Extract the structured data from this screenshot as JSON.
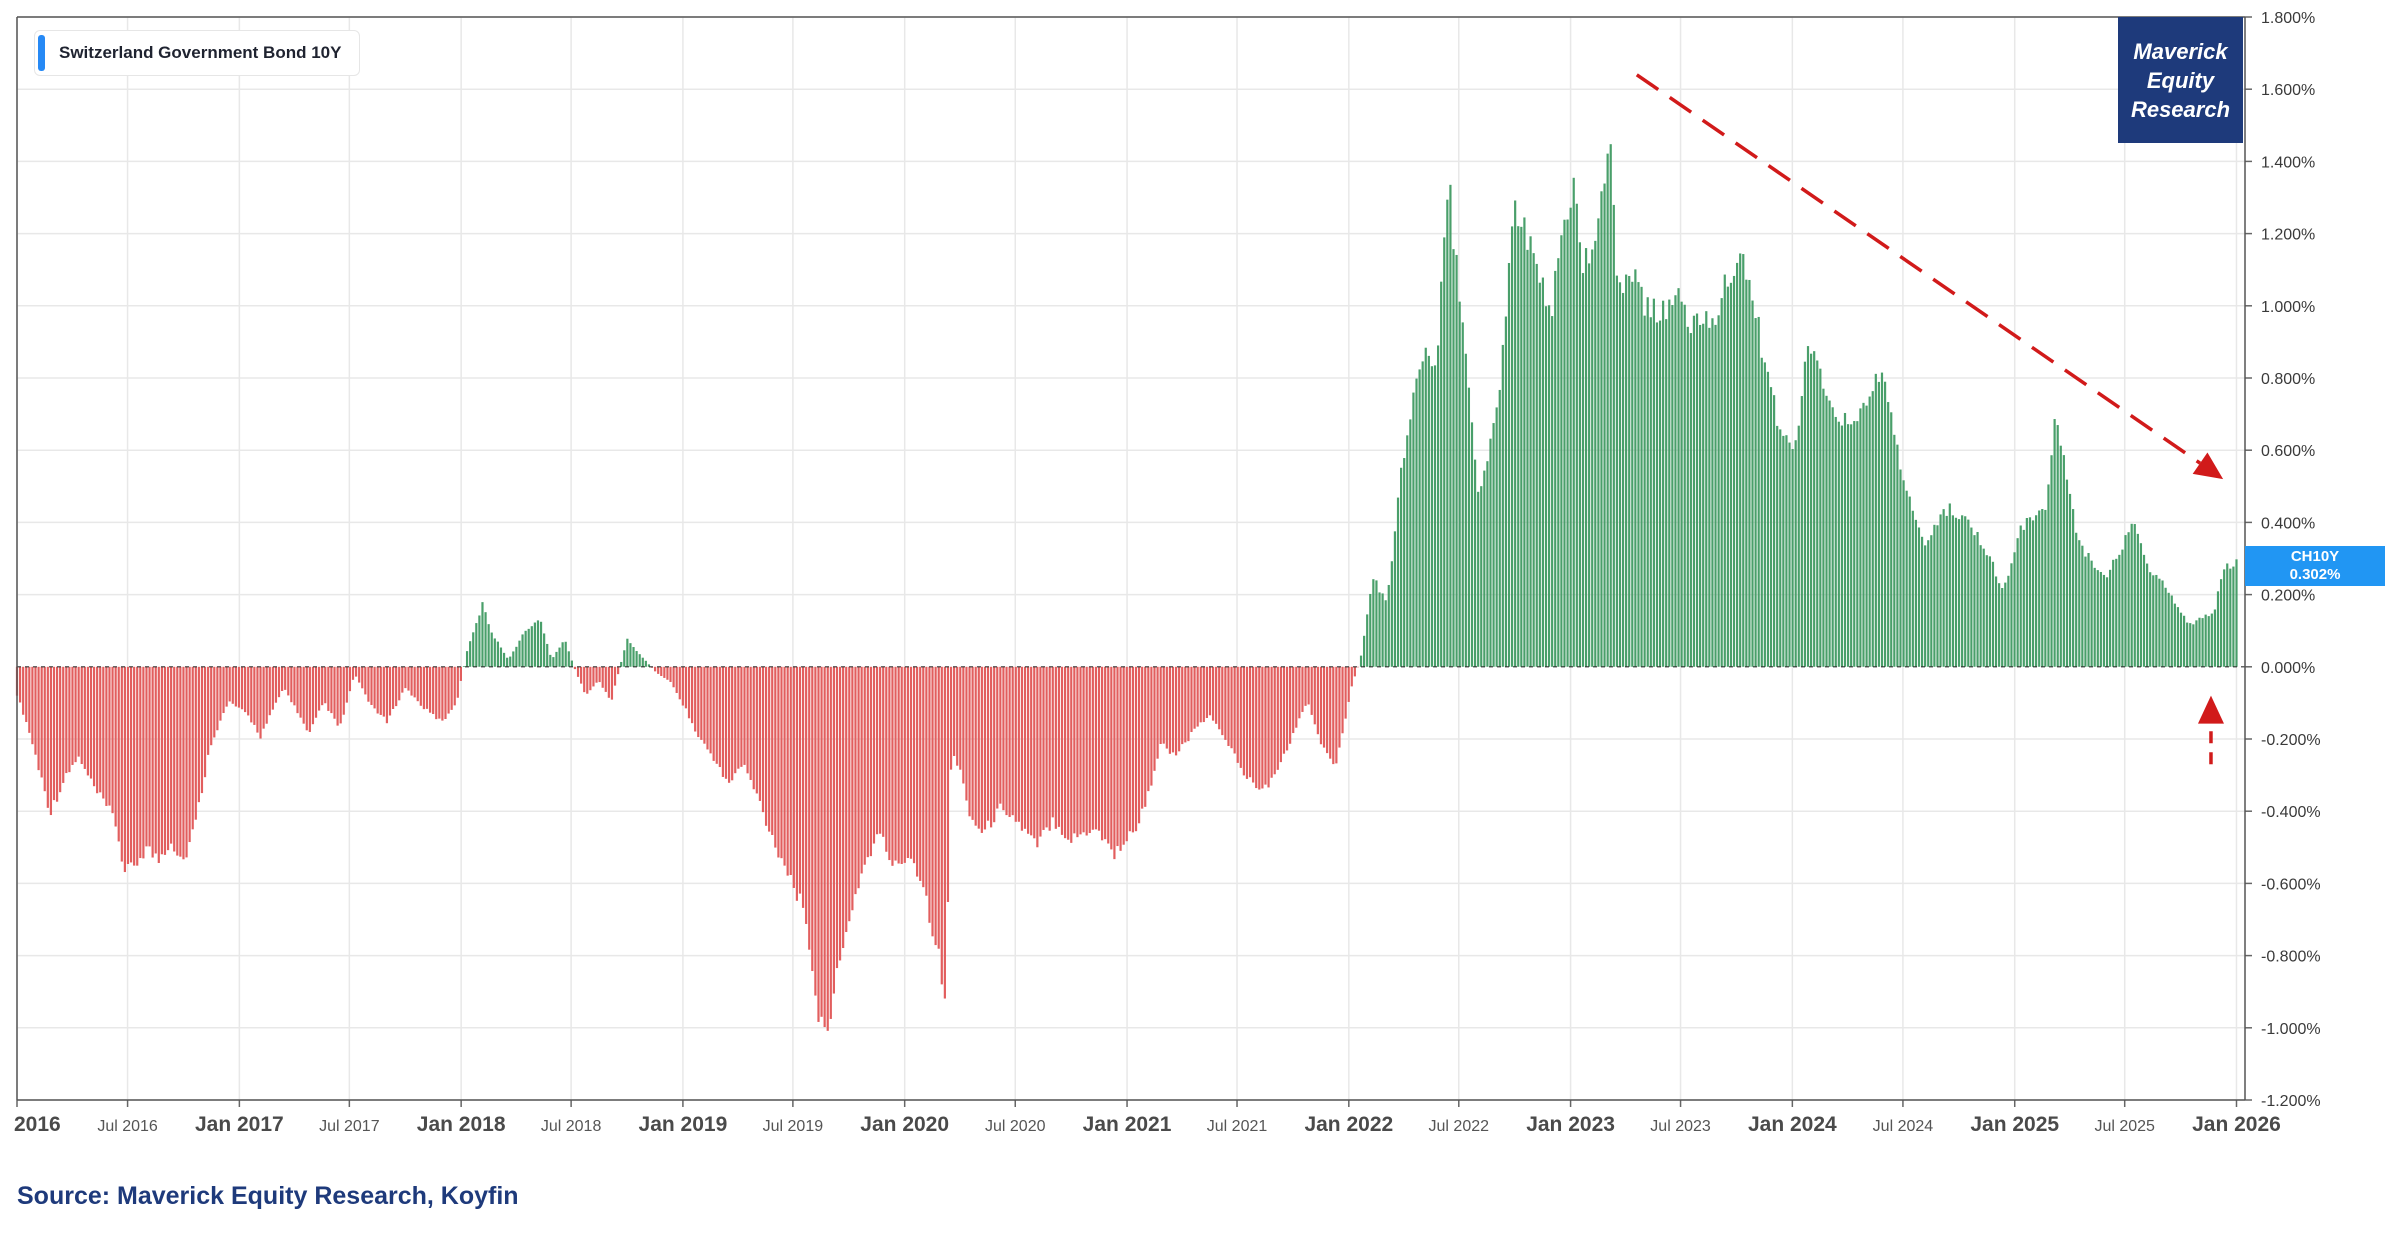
{
  "legend": {
    "label": "Switzerland Government Bond 10Y",
    "swatch_color": "#2689f5"
  },
  "brand": {
    "line1": "Maverick",
    "line2": "Equity",
    "line3": "Research",
    "background": "#1e3a7b"
  },
  "source": "Source: Maverick Equity Research, Koyfin",
  "last_value": {
    "ticker": "CH10Y",
    "value": "0.302%",
    "background": "#2196f3"
  },
  "colors": {
    "positive": "#3f9a62",
    "negative": "#e05555",
    "annotation": "#d11a1a",
    "grid": "#e8e8e8"
  },
  "chart_data": {
    "type": "area",
    "title": "Switzerland Government Bond 10Y",
    "xlabel": "",
    "ylabel": "",
    "ylim": [
      -1.2,
      1.8
    ],
    "xlim": [
      "2016-01-01",
      "2026-01-15"
    ],
    "grid": true,
    "legend_position": "top-left",
    "y_ticks": [
      "1.800%",
      "1.600%",
      "1.400%",
      "1.200%",
      "1.000%",
      "0.800%",
      "0.600%",
      "0.400%",
      "0.200%",
      "0.000%",
      "-0.200%",
      "-0.400%",
      "-0.600%",
      "-0.800%",
      "-1.000%",
      "-1.200%"
    ],
    "y_tick_values": [
      1.8,
      1.6,
      1.4,
      1.2,
      1.0,
      0.8,
      0.6,
      0.4,
      0.2,
      0.0,
      -0.2,
      -0.4,
      -0.6,
      -0.8,
      -1.0,
      -1.2
    ],
    "x_ticks": [
      {
        "label": "2016",
        "date": "2016-01-01",
        "major": true
      },
      {
        "label": "Jul 2016",
        "date": "2016-07-01",
        "major": false
      },
      {
        "label": "Jan 2017",
        "date": "2017-01-01",
        "major": true
      },
      {
        "label": "Jul 2017",
        "date": "2017-07-01",
        "major": false
      },
      {
        "label": "Jan 2018",
        "date": "2018-01-01",
        "major": true
      },
      {
        "label": "Jul 2018",
        "date": "2018-07-01",
        "major": false
      },
      {
        "label": "Jan 2019",
        "date": "2019-01-01",
        "major": true
      },
      {
        "label": "Jul 2019",
        "date": "2019-07-01",
        "major": false
      },
      {
        "label": "Jan 2020",
        "date": "2020-01-01",
        "major": true
      },
      {
        "label": "Jul 2020",
        "date": "2020-07-01",
        "major": false
      },
      {
        "label": "Jan 2021",
        "date": "2021-01-01",
        "major": true
      },
      {
        "label": "Jul 2021",
        "date": "2021-07-01",
        "major": false
      },
      {
        "label": "Jan 2022",
        "date": "2022-01-01",
        "major": true
      },
      {
        "label": "Jul 2022",
        "date": "2022-07-01",
        "major": false
      },
      {
        "label": "Jan 2023",
        "date": "2023-01-01",
        "major": true
      },
      {
        "label": "Jul 2023",
        "date": "2023-07-01",
        "major": false
      },
      {
        "label": "Jan 2024",
        "date": "2024-01-01",
        "major": true
      },
      {
        "label": "Jul 2024",
        "date": "2024-07-01",
        "major": false
      },
      {
        "label": "Jan 2025",
        "date": "2025-01-01",
        "major": true
      },
      {
        "label": "Jul 2025",
        "date": "2025-07-01",
        "major": false
      },
      {
        "label": "Jan 2026",
        "date": "2026-01-01",
        "major": true
      }
    ],
    "series": [
      {
        "points": [
          [
            "2016-01-01",
            -0.08
          ],
          [
            "2016-01-20",
            -0.18
          ],
          [
            "2016-02-10",
            -0.32
          ],
          [
            "2016-02-25",
            -0.42
          ],
          [
            "2016-03-15",
            -0.34
          ],
          [
            "2016-04-10",
            -0.26
          ],
          [
            "2016-05-10",
            -0.36
          ],
          [
            "2016-06-10",
            -0.44
          ],
          [
            "2016-06-27",
            -0.6
          ],
          [
            "2016-07-10",
            -0.58
          ],
          [
            "2016-08-01",
            -0.52
          ],
          [
            "2016-08-20",
            -0.56
          ],
          [
            "2016-09-10",
            -0.5
          ],
          [
            "2016-10-01",
            -0.56
          ],
          [
            "2016-10-20",
            -0.46
          ],
          [
            "2016-11-15",
            -0.22
          ],
          [
            "2016-12-15",
            -0.1
          ],
          [
            "2017-01-15",
            -0.14
          ],
          [
            "2017-02-05",
            -0.2
          ],
          [
            "2017-03-15",
            -0.06
          ],
          [
            "2017-04-10",
            -0.14
          ],
          [
            "2017-04-25",
            -0.2
          ],
          [
            "2017-05-20",
            -0.1
          ],
          [
            "2017-06-15",
            -0.18
          ],
          [
            "2017-07-10",
            -0.02
          ],
          [
            "2017-08-01",
            -0.1
          ],
          [
            "2017-09-01",
            -0.16
          ],
          [
            "2017-10-01",
            -0.06
          ],
          [
            "2017-11-01",
            -0.12
          ],
          [
            "2017-12-01",
            -0.16
          ],
          [
            "2017-12-25",
            -0.1
          ],
          [
            "2018-01-10",
            0.04
          ],
          [
            "2018-02-05",
            0.18
          ],
          [
            "2018-02-20",
            0.1
          ],
          [
            "2018-03-20",
            0.02
          ],
          [
            "2018-04-15",
            0.1
          ],
          [
            "2018-05-10",
            0.14
          ],
          [
            "2018-05-30",
            0.02
          ],
          [
            "2018-06-20",
            0.08
          ],
          [
            "2018-07-10",
            -0.02
          ],
          [
            "2018-07-25",
            -0.08
          ],
          [
            "2018-08-15",
            -0.04
          ],
          [
            "2018-09-05",
            -0.1
          ],
          [
            "2018-10-01",
            0.08
          ],
          [
            "2018-10-20",
            0.04
          ],
          [
            "2018-11-20",
            -0.02
          ],
          [
            "2018-12-10",
            -0.04
          ],
          [
            "2019-01-05",
            -0.12
          ],
          [
            "2019-01-25",
            -0.2
          ],
          [
            "2019-02-20",
            -0.26
          ],
          [
            "2019-03-15",
            -0.34
          ],
          [
            "2019-04-10",
            -0.28
          ],
          [
            "2019-05-05",
            -0.38
          ],
          [
            "2019-05-25",
            -0.48
          ],
          [
            "2019-06-20",
            -0.58
          ],
          [
            "2019-07-10",
            -0.66
          ],
          [
            "2019-08-01",
            -0.84
          ],
          [
            "2019-08-15",
            -1.06
          ],
          [
            "2019-08-30",
            -1.0
          ],
          [
            "2019-09-15",
            -0.88
          ],
          [
            "2019-10-05",
            -0.7
          ],
          [
            "2019-10-25",
            -0.58
          ],
          [
            "2019-11-20",
            -0.48
          ],
          [
            "2019-12-15",
            -0.58
          ],
          [
            "2020-01-10",
            -0.54
          ],
          [
            "2020-01-30",
            -0.62
          ],
          [
            "2020-02-20",
            -0.78
          ],
          [
            "2020-03-09",
            -0.96
          ],
          [
            "2020-03-18",
            -0.24
          ],
          [
            "2020-04-01",
            -0.3
          ],
          [
            "2020-04-20",
            -0.44
          ],
          [
            "2020-05-10",
            -0.48
          ],
          [
            "2020-06-10",
            -0.4
          ],
          [
            "2020-07-10",
            -0.46
          ],
          [
            "2020-08-05",
            -0.52
          ],
          [
            "2020-09-01",
            -0.44
          ],
          [
            "2020-10-01",
            -0.5
          ],
          [
            "2020-11-10",
            -0.46
          ],
          [
            "2020-12-10",
            -0.54
          ],
          [
            "2021-01-10",
            -0.48
          ],
          [
            "2021-02-01",
            -0.4
          ],
          [
            "2021-02-25",
            -0.22
          ],
          [
            "2021-03-20",
            -0.26
          ],
          [
            "2021-04-15",
            -0.2
          ],
          [
            "2021-05-15",
            -0.14
          ],
          [
            "2021-06-10",
            -0.2
          ],
          [
            "2021-07-10",
            -0.3
          ],
          [
            "2021-08-05",
            -0.36
          ],
          [
            "2021-09-01",
            -0.32
          ],
          [
            "2021-10-05",
            -0.18
          ],
          [
            "2021-10-25",
            -0.1
          ],
          [
            "2021-11-20",
            -0.24
          ],
          [
            "2021-12-10",
            -0.28
          ],
          [
            "2021-12-25",
            -0.16
          ],
          [
            "2022-01-05",
            -0.06
          ],
          [
            "2022-01-20",
            0.02
          ],
          [
            "2022-02-10",
            0.26
          ],
          [
            "2022-03-05",
            0.18
          ],
          [
            "2022-03-25",
            0.52
          ],
          [
            "2022-04-15",
            0.76
          ],
          [
            "2022-05-05",
            0.92
          ],
          [
            "2022-05-25",
            0.88
          ],
          [
            "2022-06-14",
            1.45
          ],
          [
            "2022-06-25",
            1.18
          ],
          [
            "2022-07-10",
            0.94
          ],
          [
            "2022-08-01",
            0.5
          ],
          [
            "2022-08-20",
            0.62
          ],
          [
            "2022-09-10",
            0.86
          ],
          [
            "2022-09-30",
            1.32
          ],
          [
            "2022-10-20",
            1.24
          ],
          [
            "2022-11-10",
            1.16
          ],
          [
            "2022-12-01",
            1.02
          ],
          [
            "2022-12-20",
            1.28
          ],
          [
            "2023-01-10",
            1.4
          ],
          [
            "2023-01-20",
            1.18
          ],
          [
            "2023-02-15",
            1.24
          ],
          [
            "2023-03-08",
            1.56
          ],
          [
            "2023-03-20",
            1.1
          ],
          [
            "2023-04-15",
            1.14
          ],
          [
            "2023-05-10",
            1.02
          ],
          [
            "2023-06-01",
            1.04
          ],
          [
            "2023-06-25",
            1.06
          ],
          [
            "2023-07-20",
            1.0
          ],
          [
            "2023-08-20",
            1.0
          ],
          [
            "2023-09-15",
            1.1
          ],
          [
            "2023-10-05",
            1.16
          ],
          [
            "2023-10-25",
            1.12
          ],
          [
            "2023-11-20",
            0.84
          ],
          [
            "2023-12-10",
            0.7
          ],
          [
            "2024-01-05",
            0.62
          ],
          [
            "2024-01-25",
            0.92
          ],
          [
            "2024-02-20",
            0.84
          ],
          [
            "2024-03-10",
            0.7
          ],
          [
            "2024-04-01",
            0.72
          ],
          [
            "2024-04-25",
            0.74
          ],
          [
            "2024-05-30",
            0.86
          ],
          [
            "2024-06-20",
            0.64
          ],
          [
            "2024-07-15",
            0.46
          ],
          [
            "2024-08-05",
            0.36
          ],
          [
            "2024-08-25",
            0.42
          ],
          [
            "2024-09-15",
            0.46
          ],
          [
            "2024-10-10",
            0.42
          ],
          [
            "2024-11-01",
            0.38
          ],
          [
            "2024-11-25",
            0.3
          ],
          [
            "2024-12-10",
            0.22
          ],
          [
            "2024-12-25",
            0.28
          ],
          [
            "2025-01-10",
            0.4
          ],
          [
            "2025-02-01",
            0.44
          ],
          [
            "2025-02-20",
            0.46
          ],
          [
            "2025-03-10",
            0.74
          ],
          [
            "2025-03-25",
            0.58
          ],
          [
            "2025-04-15",
            0.36
          ],
          [
            "2025-05-10",
            0.3
          ],
          [
            "2025-06-01",
            0.26
          ],
          [
            "2025-06-25",
            0.34
          ],
          [
            "2025-07-15",
            0.42
          ],
          [
            "2025-08-10",
            0.28
          ],
          [
            "2025-09-01",
            0.24
          ],
          [
            "2025-09-25",
            0.18
          ],
          [
            "2025-10-15",
            0.12
          ],
          [
            "2025-11-05",
            0.14
          ],
          [
            "2025-11-25",
            0.16
          ],
          [
            "2025-12-10",
            0.28
          ],
          [
            "2026-01-01",
            0.302
          ]
        ]
      }
    ],
    "annotations": [
      {
        "type": "dashed-arrow",
        "from": [
          "2023-04-20",
          1.64
        ],
        "to": [
          "2025-12-10",
          0.52
        ]
      },
      {
        "type": "dashed-arrow",
        "from": [
          "2025-11-20",
          -0.27
        ],
        "to": [
          "2025-11-20",
          -0.08
        ]
      }
    ]
  }
}
